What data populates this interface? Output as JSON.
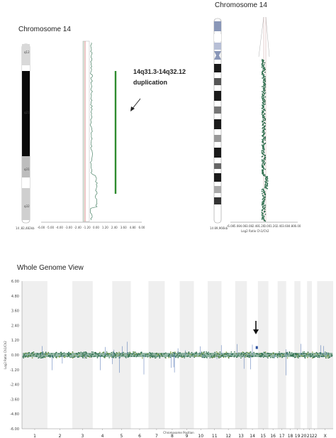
{
  "panel_left": {
    "title": "Chromosome 14",
    "ideogram_bands": [
      "q12",
      "q21",
      "q31",
      "q32"
    ],
    "ideogram_label": "14 ,82,482kb",
    "annotation": [
      "14q31.3-14q32.12",
      "duplication"
    ]
  },
  "panel_right": {
    "title": "Chromosome 14",
    "ideogram_label": "14 89,966kb",
    "xlabel": "Log2 Ratio Ch1/Ch2"
  },
  "panel_bottom": {
    "title": "Whole Genome View",
    "ylabel": "Log2 Ratio Ch1/Ch2",
    "xlabel": "Chromosome Position",
    "arrow_chromosome": "14"
  },
  "chart_data": [
    {
      "type": "line",
      "title": "Chromosome 14",
      "x_ticks": [
        "-6.00",
        "-5.00",
        "-4.00",
        "-3.00",
        "-2.40",
        "-1.20",
        "0.00",
        "1.20",
        "2.40",
        "3.60",
        "4.80",
        "6.00"
      ],
      "xlim": [
        -6,
        6
      ],
      "series": [
        {
          "values_description_free": true,
          "segments": [
            {
              "from": 0,
              "to": 0.75,
              "log2": 0.0
            },
            {
              "from": 0.75,
              "to": 0.93,
              "log2": 0.58
            },
            {
              "from": 0.93,
              "to": 1.0,
              "log2": 0.0
            }
          ]
        }
      ],
      "highlight": {
        "label": "duplication",
        "position_fraction": [
          0.1,
          0.78
        ]
      }
    },
    {
      "type": "line",
      "title": "Chromosome 14",
      "x_ticks": [
        "-6.00",
        "-5.00",
        "-4.00",
        "-3.00",
        "-2.40",
        "-1.20",
        "0.00",
        "1.20",
        "2.40",
        "3.60",
        "4.80",
        "6.00"
      ],
      "xlim": [
        -6,
        6
      ],
      "xlabel": "Log2 Ratio Ch1/Ch2",
      "segments": [
        {
          "from": 0.0,
          "to": 0.72,
          "log2": 0.0
        },
        {
          "from": 0.72,
          "to": 0.8,
          "log2": 0.58
        },
        {
          "from": 0.8,
          "to": 1.0,
          "log2": 0.0
        }
      ]
    },
    {
      "type": "scatter",
      "title": "Whole Genome View",
      "ylabel": "Log2 Ratio Ch1/Ch2",
      "y_ticks": [
        "6.00",
        "4.80",
        "3.60",
        "2.40",
        "1.20",
        "0.00",
        "-1.20",
        "-2.40",
        "-3.60",
        "-4.80",
        "-6.00"
      ],
      "ylim": [
        -6,
        6
      ],
      "chromosomes": [
        "1",
        "2",
        "3",
        "4",
        "5",
        "6",
        "7",
        "8",
        "9",
        "10",
        "11",
        "12",
        "13",
        "14",
        "15",
        "16",
        "17",
        "18",
        "19",
        "20",
        "21",
        "22",
        "X"
      ],
      "baseline": 0.0,
      "duplication": {
        "chromosome": "14",
        "log2": 0.6
      }
    }
  ],
  "colors": {
    "points": "#2f6f4f",
    "accent_green": "#2e8b2e",
    "center_line": "#d06060",
    "band_gray": "#efefef"
  }
}
